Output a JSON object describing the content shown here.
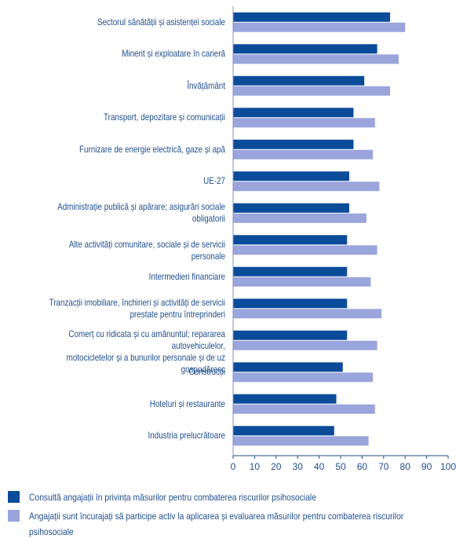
{
  "chart_data": {
    "type": "bar",
    "orientation": "horizontal",
    "categories": [
      [
        "Sectorul sănătății și asistenței sociale"
      ],
      [
        "Minerit și exploatare în carieră"
      ],
      [
        "Învățământ"
      ],
      [
        "Transport, depozitare și comunicații"
      ],
      [
        "Furnizare de energie electrică, gaze și apă"
      ],
      [
        "UE-27"
      ],
      [
        "Administrație publică și apărare; asigurări sociale",
        "obligatorii"
      ],
      [
        "Alte activități comunitare, sociale și de servicii personale"
      ],
      [
        "Intermedieri financiare"
      ],
      [
        "Tranzacții imobiliare, închirieri și activități de servicii",
        "prestate pentru întreprinderi"
      ],
      [
        "Comerț cu ridicata și cu amănuntul; repararea autovehiculelor,",
        "motocicletelor și a bunurilor personale și de uz gospodăresc"
      ],
      [
        "Construcții"
      ],
      [
        "Hoteluri și restaurante"
      ],
      [
        "Industria prelucrătoare"
      ]
    ],
    "series": [
      {
        "name": "Consultă angajații în privința măsurilor pentru combaterea riscurilor psihosociale",
        "color": "#0b4c9a",
        "values": [
          73,
          67,
          61,
          56,
          56,
          54,
          54,
          53,
          53,
          53,
          53,
          51,
          48,
          47
        ]
      },
      {
        "name": "Angajații sunt încurajați să participe activ la aplicarea și evaluarea măsurilor pentru combaterea riscurilor psihosociale",
        "color": "#9aa5dc",
        "values": [
          80,
          77,
          73,
          66,
          65,
          68,
          62,
          67,
          64,
          69,
          67,
          65,
          66,
          63
        ]
      }
    ],
    "xlim": [
      0,
      100
    ],
    "xticks": [
      0,
      10,
      20,
      30,
      40,
      50,
      60,
      70,
      80,
      90,
      100
    ],
    "grid": false,
    "legend_position": "bottom"
  },
  "legend": {
    "series1_lines": [
      "Consultă angajații în privința măsurilor pentru combaterea riscurilor psihosociale"
    ],
    "series2_lines": [
      "Angajații sunt încurajați să participe activ la aplicarea și evaluarea măsurilor pentru combaterea riscurilor",
      "psihosociale"
    ]
  }
}
